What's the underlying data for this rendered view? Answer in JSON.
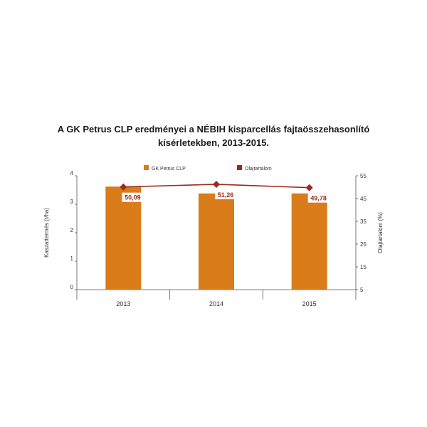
{
  "chart_data": {
    "type": "bar+line",
    "title_line1": "A GK Petrus CLP eredményei a NÉBIH kisparcellás fajtaösszehasonlító",
    "title_line2": "kísérletekben, 2013-2015.",
    "categories": [
      "2013",
      "2014",
      "2015"
    ],
    "bar_series": {
      "name": "GK Petrus CLP",
      "values": [
        3.62,
        3.38,
        3.38
      ],
      "color": "#d97c19"
    },
    "line_series": {
      "name": "Olajtartalom",
      "values": [
        50.09,
        51.26,
        49.78
      ],
      "labels": [
        "50,09",
        "51,26",
        "49,78"
      ],
      "color": "#9b2a1a"
    },
    "ylabel_left": "Kaszattermés (t/ha)",
    "ylabel_right": "Olajtartalom (%)",
    "ylim_left": [
      0,
      4
    ],
    "ylim_right": [
      5,
      55
    ],
    "yticks_left": [
      "0",
      "1",
      "2",
      "3",
      "4"
    ],
    "yticks_right": [
      "5",
      "15",
      "25",
      "35",
      "45",
      "55"
    ],
    "legend_position": "top"
  }
}
